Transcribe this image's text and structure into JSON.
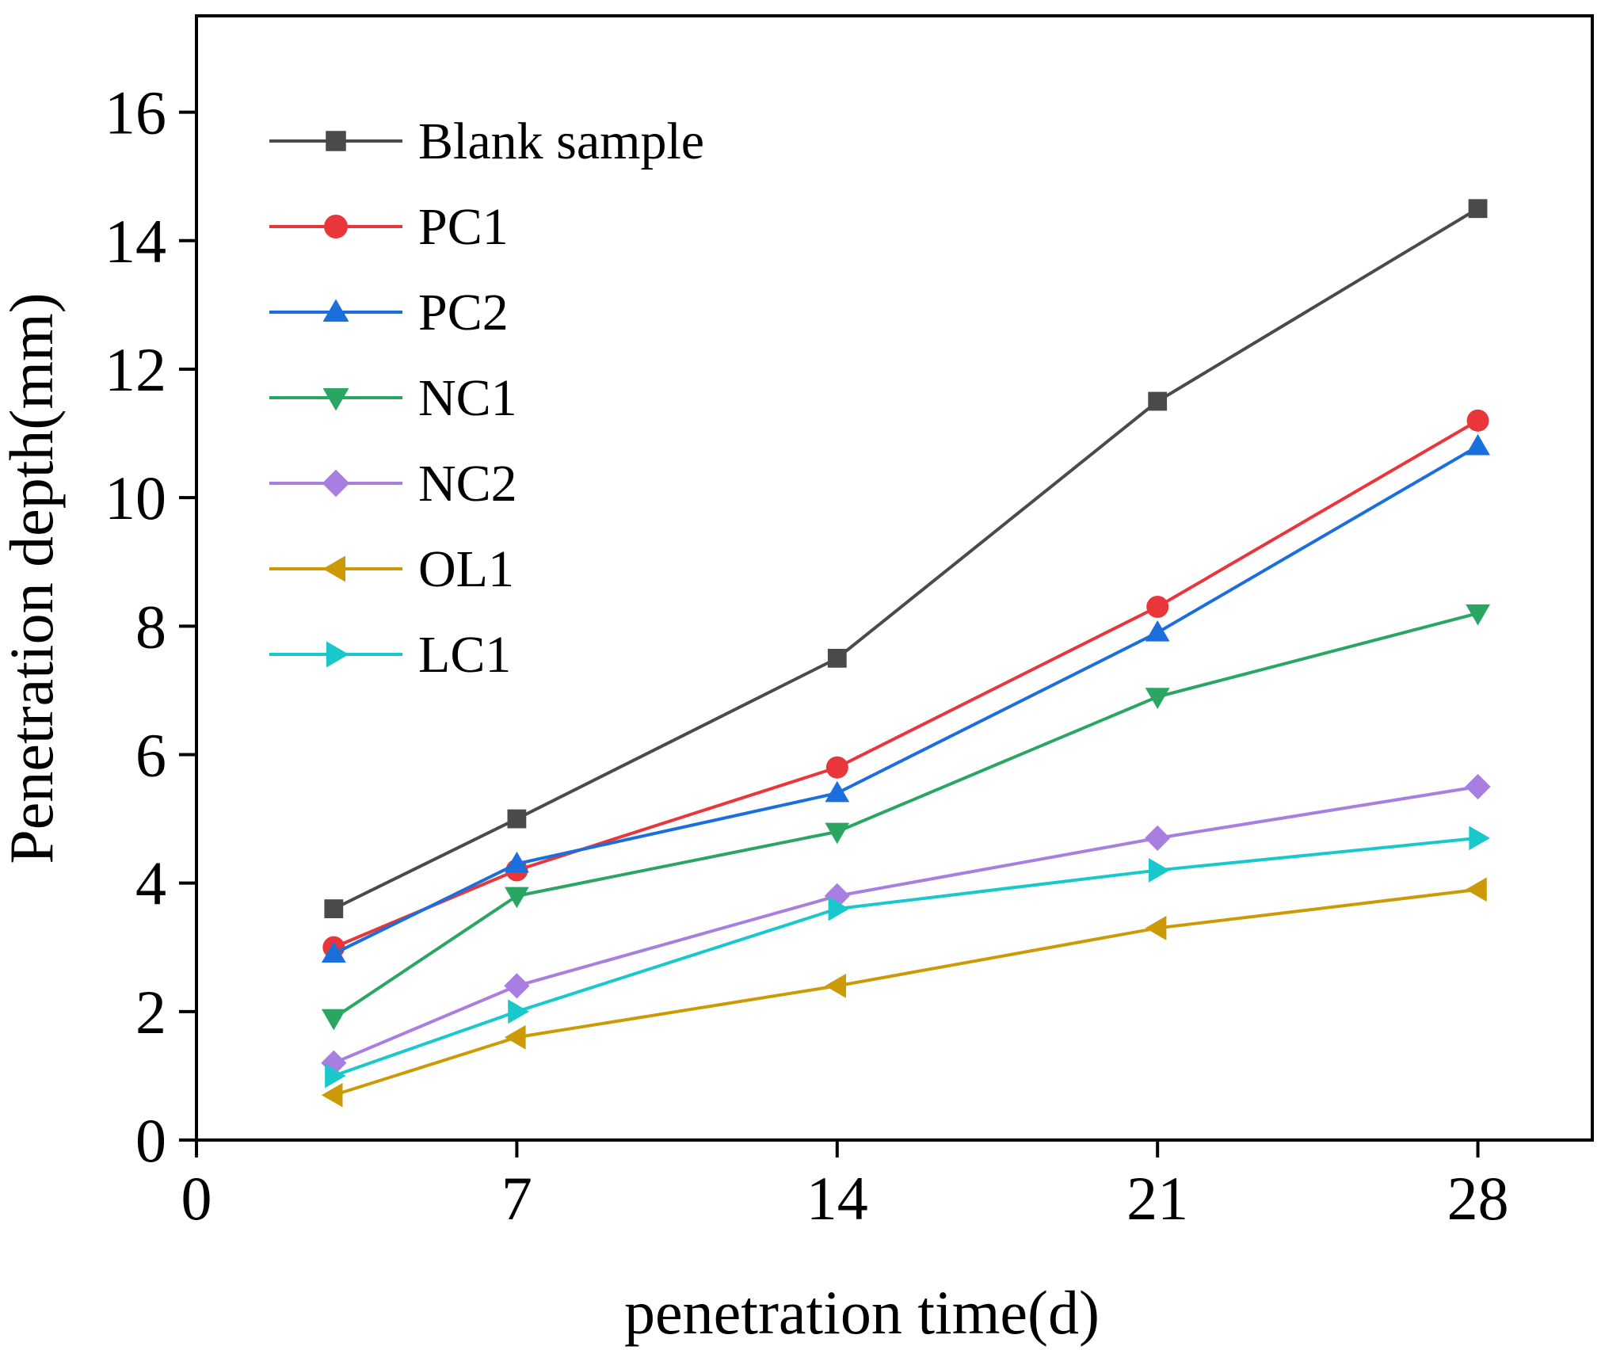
{
  "chart_data": {
    "type": "line",
    "title": "",
    "xlabel": "penetration time(d)",
    "ylabel": "Penetration depth(mm)",
    "xlim": [
      0,
      30.5
    ],
    "ylim": [
      0,
      17.5
    ],
    "xticks": [
      0,
      7,
      14,
      21,
      28
    ],
    "yticks": [
      0,
      2,
      4,
      6,
      8,
      10,
      12,
      14,
      16
    ],
    "x": [
      3,
      7,
      14,
      21,
      28
    ],
    "legend_position": "top-left",
    "series": [
      {
        "name": "Blank sample",
        "color": "#4a4a4a",
        "marker": "square",
        "values": [
          3.6,
          5.0,
          7.5,
          11.5,
          14.5
        ]
      },
      {
        "name": "PC1",
        "color": "#e8363a",
        "marker": "circle",
        "values": [
          3.0,
          4.2,
          5.8,
          8.3,
          11.2
        ]
      },
      {
        "name": "PC2",
        "color": "#1a6fdc",
        "marker": "triangle-up",
        "values": [
          2.9,
          4.3,
          5.4,
          7.9,
          10.8
        ]
      },
      {
        "name": "NC1",
        "color": "#2aa562",
        "marker": "triangle-down",
        "values": [
          1.9,
          3.8,
          4.8,
          6.9,
          8.2
        ]
      },
      {
        "name": "NC2",
        "color": "#a87ee0",
        "marker": "diamond",
        "values": [
          1.2,
          2.4,
          3.8,
          4.7,
          5.5
        ]
      },
      {
        "name": "OL1",
        "color": "#cc9a06",
        "marker": "triangle-left",
        "values": [
          0.7,
          1.6,
          2.4,
          3.3,
          3.9
        ]
      },
      {
        "name": "LC1",
        "color": "#18c8cd",
        "marker": "triangle-right",
        "values": [
          1.0,
          2.0,
          3.6,
          4.2,
          4.7
        ]
      }
    ]
  }
}
